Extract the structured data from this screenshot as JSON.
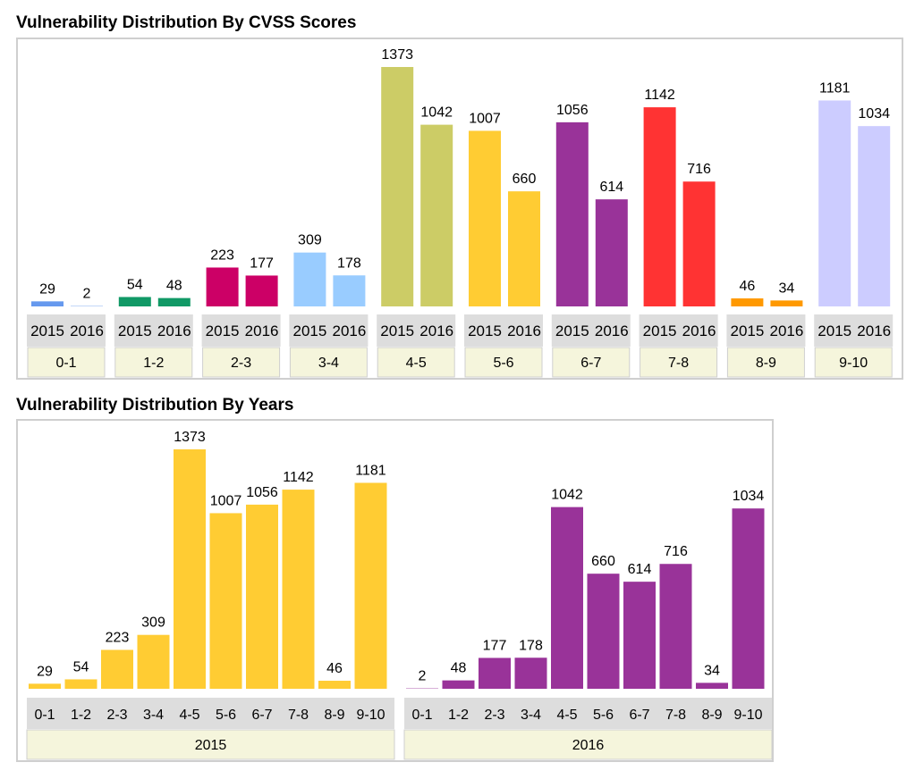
{
  "title_cvss": "Vulnerability Distribution By CVSS Scores",
  "title_years": "Vulnerability Distribution By Years",
  "chart_data": [
    {
      "type": "bar",
      "title": "Vulnerability Distribution By CVSS Scores",
      "categories": [
        "0-1",
        "1-2",
        "2-3",
        "3-4",
        "4-5",
        "5-6",
        "6-7",
        "7-8",
        "8-9",
        "9-10"
      ],
      "sub_categories": [
        "2015",
        "2016"
      ],
      "series": [
        {
          "name": "2015",
          "values": [
            29,
            54,
            223,
            309,
            1373,
            1007,
            1056,
            1142,
            46,
            1181
          ]
        },
        {
          "name": "2016",
          "values": [
            2,
            48,
            177,
            178,
            1042,
            660,
            614,
            716,
            34,
            1034
          ]
        }
      ],
      "category_colors": [
        "#6699ee",
        "#119966",
        "#cc0066",
        "#99ccff",
        "#cccc66",
        "#ffcc33",
        "#993399",
        "#ff3333",
        "#ff9900",
        "#ccccff"
      ],
      "ylim": [
        0,
        1373
      ]
    },
    {
      "type": "bar",
      "title": "Vulnerability Distribution By Years",
      "groups": [
        {
          "name": "2015",
          "color": "#ffcc33",
          "categories": [
            "0-1",
            "1-2",
            "2-3",
            "3-4",
            "4-5",
            "5-6",
            "6-7",
            "7-8",
            "8-9",
            "9-10"
          ],
          "values": [
            29,
            54,
            223,
            309,
            1373,
            1007,
            1056,
            1142,
            46,
            1181
          ]
        },
        {
          "name": "2016",
          "color": "#993399",
          "categories": [
            "0-1",
            "1-2",
            "2-3",
            "3-4",
            "4-5",
            "5-6",
            "6-7",
            "7-8",
            "8-9",
            "9-10"
          ],
          "values": [
            2,
            48,
            177,
            178,
            1042,
            660,
            614,
            716,
            34,
            1034
          ]
        }
      ],
      "ylim": [
        0,
        1373
      ]
    }
  ]
}
